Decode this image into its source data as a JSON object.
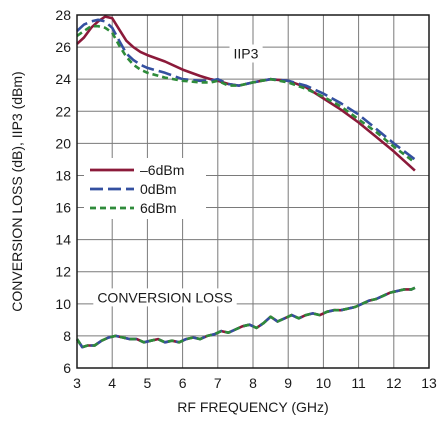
{
  "chart_data": {
    "type": "line",
    "title": "",
    "xlabel": "RF FREQUENCY (GHz)",
    "ylabel": "CONVERSION LOSS (dB), IIP3 (dBm)",
    "xlim": [
      3,
      13
    ],
    "ylim": [
      6,
      28
    ],
    "xticks": [
      3,
      4,
      5,
      6,
      7,
      8,
      9,
      10,
      11,
      12,
      13
    ],
    "yticks": [
      6,
      8,
      10,
      12,
      14,
      16,
      18,
      20,
      22,
      24,
      26,
      28
    ],
    "grid": true,
    "legend_position": "left-middle",
    "annotations": [
      {
        "text": "IIP3",
        "x": 7.8,
        "y": 25.6
      },
      {
        "text": "CONVERSION LOSS",
        "x": 5.5,
        "y": 10.4
      }
    ],
    "series": [
      {
        "name": "–6dBm",
        "group": "IIP3",
        "color": "#8b1a3a",
        "dash": "solid",
        "x": [
          3.0,
          3.2,
          3.4,
          3.6,
          3.8,
          4.0,
          4.2,
          4.4,
          4.6,
          4.8,
          5.0,
          5.5,
          6.0,
          6.5,
          6.8,
          7.0,
          7.3,
          7.6,
          8.0,
          8.5,
          9.0,
          9.5,
          10.0,
          10.5,
          11.0,
          11.5,
          12.0,
          12.6
        ],
        "values": [
          26.2,
          26.6,
          27.2,
          27.6,
          27.9,
          27.8,
          27.1,
          26.4,
          26.0,
          25.7,
          25.5,
          25.1,
          24.6,
          24.2,
          24.0,
          23.9,
          23.7,
          23.6,
          23.8,
          24.0,
          23.9,
          23.5,
          22.8,
          22.1,
          21.3,
          20.4,
          19.5,
          18.3
        ]
      },
      {
        "name": "0dBm",
        "group": "IIP3",
        "color": "#3450a0",
        "dash": "long",
        "x": [
          3.0,
          3.2,
          3.4,
          3.6,
          3.8,
          4.0,
          4.2,
          4.4,
          4.6,
          4.8,
          5.0,
          5.5,
          6.0,
          6.5,
          6.8,
          7.0,
          7.3,
          7.6,
          8.0,
          8.5,
          9.0,
          9.5,
          10.0,
          10.5,
          11.0,
          11.5,
          12.0,
          12.6
        ],
        "values": [
          27.0,
          27.4,
          27.6,
          27.7,
          27.6,
          27.2,
          26.4,
          25.6,
          25.2,
          24.9,
          24.7,
          24.4,
          24.0,
          23.9,
          23.9,
          24.0,
          23.7,
          23.6,
          23.8,
          24.0,
          23.9,
          23.6,
          23.1,
          22.5,
          21.8,
          20.9,
          20.0,
          19.0
        ]
      },
      {
        "name": "6dBm",
        "group": "IIP3",
        "color": "#2e8b3a",
        "dash": "short",
        "x": [
          3.0,
          3.2,
          3.4,
          3.6,
          3.8,
          4.0,
          4.2,
          4.4,
          4.6,
          4.8,
          5.0,
          5.5,
          6.0,
          6.5,
          6.8,
          7.0,
          7.3,
          7.6,
          8.0,
          8.5,
          9.0,
          9.5,
          10.0,
          10.5,
          11.0,
          11.5,
          12.0,
          12.6
        ],
        "values": [
          26.7,
          27.0,
          27.3,
          27.3,
          27.2,
          26.9,
          26.1,
          25.4,
          24.9,
          24.6,
          24.4,
          24.1,
          23.9,
          23.8,
          23.8,
          23.9,
          23.6,
          23.6,
          23.8,
          24.0,
          23.8,
          23.4,
          22.9,
          22.3,
          21.5,
          20.7,
          19.8,
          18.8
        ]
      },
      {
        "name": "–6dBm",
        "group": "CONVERSION LOSS",
        "color": "#8b1a3a",
        "dash": "solid",
        "x": [
          3.0,
          3.15,
          3.3,
          3.5,
          3.7,
          3.9,
          4.1,
          4.3,
          4.5,
          4.7,
          4.9,
          5.1,
          5.3,
          5.5,
          5.7,
          5.9,
          6.1,
          6.3,
          6.5,
          6.7,
          6.9,
          7.1,
          7.3,
          7.5,
          7.7,
          7.9,
          8.1,
          8.3,
          8.5,
          8.7,
          8.9,
          9.1,
          9.3,
          9.5,
          9.7,
          9.9,
          10.1,
          10.3,
          10.5,
          10.7,
          10.9,
          11.1,
          11.3,
          11.5,
          11.7,
          11.9,
          12.1,
          12.3,
          12.5,
          12.6
        ],
        "values": [
          7.8,
          7.3,
          7.4,
          7.4,
          7.7,
          7.9,
          8.0,
          7.9,
          7.8,
          7.8,
          7.6,
          7.7,
          7.8,
          7.6,
          7.7,
          7.6,
          7.8,
          7.9,
          7.8,
          8.0,
          8.1,
          8.3,
          8.2,
          8.4,
          8.6,
          8.7,
          8.5,
          8.8,
          9.2,
          8.9,
          9.1,
          9.3,
          9.1,
          9.3,
          9.4,
          9.3,
          9.5,
          9.6,
          9.6,
          9.7,
          9.8,
          10.0,
          10.2,
          10.3,
          10.5,
          10.7,
          10.8,
          10.9,
          10.9,
          11.0
        ]
      },
      {
        "name": "0dBm",
        "group": "CONVERSION LOSS",
        "color": "#3450a0",
        "dash": "long",
        "x": [
          3.0,
          3.15,
          3.3,
          3.5,
          3.7,
          3.9,
          4.1,
          4.3,
          4.5,
          4.7,
          4.9,
          5.1,
          5.3,
          5.5,
          5.7,
          5.9,
          6.1,
          6.3,
          6.5,
          6.7,
          6.9,
          7.1,
          7.3,
          7.5,
          7.7,
          7.9,
          8.1,
          8.3,
          8.5,
          8.7,
          8.9,
          9.1,
          9.3,
          9.5,
          9.7,
          9.9,
          10.1,
          10.3,
          10.5,
          10.7,
          10.9,
          11.1,
          11.3,
          11.5,
          11.7,
          11.9,
          12.1,
          12.3,
          12.5,
          12.6
        ],
        "values": [
          7.8,
          7.3,
          7.4,
          7.4,
          7.7,
          7.9,
          8.0,
          7.9,
          7.8,
          7.8,
          7.6,
          7.7,
          7.8,
          7.6,
          7.7,
          7.6,
          7.8,
          7.9,
          7.8,
          8.0,
          8.1,
          8.3,
          8.2,
          8.4,
          8.6,
          8.7,
          8.5,
          8.8,
          9.2,
          8.9,
          9.1,
          9.3,
          9.1,
          9.3,
          9.4,
          9.3,
          9.5,
          9.6,
          9.6,
          9.7,
          9.8,
          10.0,
          10.2,
          10.3,
          10.5,
          10.7,
          10.8,
          10.9,
          10.9,
          11.0
        ]
      },
      {
        "name": "6dBm",
        "group": "CONVERSION LOSS",
        "color": "#2e8b3a",
        "dash": "short",
        "x": [
          3.0,
          3.15,
          3.3,
          3.5,
          3.7,
          3.9,
          4.1,
          4.3,
          4.5,
          4.7,
          4.9,
          5.1,
          5.3,
          5.5,
          5.7,
          5.9,
          6.1,
          6.3,
          6.5,
          6.7,
          6.9,
          7.1,
          7.3,
          7.5,
          7.7,
          7.9,
          8.1,
          8.3,
          8.5,
          8.7,
          8.9,
          9.1,
          9.3,
          9.5,
          9.7,
          9.9,
          10.1,
          10.3,
          10.5,
          10.7,
          10.9,
          11.1,
          11.3,
          11.5,
          11.7,
          11.9,
          12.1,
          12.3,
          12.5,
          12.6
        ],
        "values": [
          7.8,
          7.3,
          7.4,
          7.4,
          7.7,
          7.9,
          8.0,
          7.9,
          7.8,
          7.8,
          7.6,
          7.7,
          7.8,
          7.6,
          7.7,
          7.6,
          7.8,
          7.9,
          7.8,
          8.0,
          8.1,
          8.3,
          8.2,
          8.4,
          8.6,
          8.7,
          8.5,
          8.8,
          9.2,
          8.9,
          9.1,
          9.3,
          9.1,
          9.3,
          9.4,
          9.3,
          9.5,
          9.6,
          9.6,
          9.7,
          9.8,
          10.0,
          10.2,
          10.3,
          10.5,
          10.7,
          10.8,
          10.9,
          10.9,
          11.0
        ]
      }
    ],
    "legend": [
      {
        "label": "–6dBm",
        "color": "#8b1a3a",
        "dash": "solid"
      },
      {
        "label": "0dBm",
        "color": "#3450a0",
        "dash": "long"
      },
      {
        "label": "6dBm",
        "color": "#2e8b3a",
        "dash": "short"
      }
    ]
  }
}
